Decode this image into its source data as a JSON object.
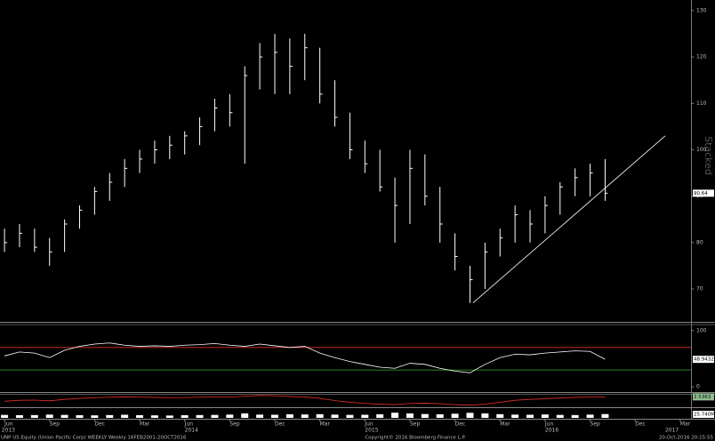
{
  "chart_data": [
    {
      "type": "ohlc",
      "side_label": "Stacked",
      "xlim": [
        -0.3,
        45.6
      ],
      "xticks": [
        {
          "value": 0,
          "label": "Jun"
        },
        {
          "value": 3,
          "label": "Sep"
        },
        {
          "value": 6,
          "label": "Dec"
        },
        {
          "value": 9,
          "label": "Mar"
        },
        {
          "value": 12,
          "label": "Jun"
        },
        {
          "value": 15,
          "label": "Sep"
        },
        {
          "value": 18,
          "label": "Dec"
        },
        {
          "value": 21,
          "label": "Mar"
        },
        {
          "value": 24,
          "label": "Jun"
        },
        {
          "value": 27,
          "label": "Sep"
        },
        {
          "value": 30,
          "label": "Dec"
        },
        {
          "value": 33,
          "label": "Mar"
        },
        {
          "value": 36,
          "label": "Jun"
        },
        {
          "value": 39,
          "label": "Sep"
        },
        {
          "value": 42,
          "label": "Dec"
        },
        {
          "value": 45,
          "label": "Mar"
        }
      ],
      "year_ticks": [
        {
          "value": -0.2,
          "label": "2013"
        },
        {
          "value": 12,
          "label": "2014"
        },
        {
          "value": 24,
          "label": "2015"
        },
        {
          "value": 36,
          "label": "2016"
        },
        {
          "value": 44,
          "label": "2017"
        }
      ],
      "ylim": [
        63.3,
        131.9
      ],
      "yticks": [
        70,
        80,
        90,
        100,
        110,
        120,
        130
      ],
      "series": [
        {
          "color": "#ffffff",
          "high": [
            83,
            84,
            83,
            81,
            85,
            88,
            92,
            95,
            98,
            100,
            102,
            103,
            104,
            107,
            111,
            112,
            118,
            123,
            125,
            124,
            125,
            122,
            115,
            108,
            102,
            100,
            94,
            100,
            99,
            92,
            82,
            75,
            80,
            83,
            88,
            87,
            90,
            93,
            96,
            97,
            98
          ],
          "low": [
            78,
            79,
            78,
            75,
            78,
            83,
            86,
            89,
            92,
            95,
            97,
            98,
            99,
            101,
            104,
            105,
            97,
            113,
            112,
            112,
            115,
            110,
            105,
            98,
            95,
            91,
            80,
            84,
            88,
            80,
            74,
            67,
            70,
            77,
            80,
            80,
            82,
            86,
            90,
            90,
            89
          ],
          "close": [
            80,
            82,
            79,
            78,
            84,
            87,
            91,
            93,
            96,
            98,
            100,
            101,
            103,
            105,
            109,
            108,
            116,
            120,
            121,
            118,
            122,
            112,
            107,
            100,
            97,
            92,
            88,
            96,
            90,
            84,
            77,
            72,
            78,
            81,
            86,
            84,
            88,
            92,
            94,
            95,
            90.64
          ]
        }
      ],
      "trendline": {
        "color": "#ffffff",
        "x": [
          31.2,
          44
        ],
        "y": [
          67,
          103
        ]
      }
    },
    {
      "type": "line",
      "ylim": [
        -7.7,
        109.2
      ],
      "yticks": [
        0,
        100
      ],
      "hlines": [
        {
          "value": 70,
          "color": "#e0312b"
        },
        {
          "value": 30,
          "color": "#2fae2f"
        }
      ],
      "series": [
        {
          "color": "#ffffff",
          "values": [
            55,
            62,
            60,
            52,
            65,
            72,
            76,
            78,
            74,
            72,
            73,
            72,
            74,
            75,
            77,
            74,
            72,
            76,
            73,
            70,
            72,
            60,
            52,
            45,
            40,
            35,
            33,
            42,
            40,
            33,
            28,
            25,
            40,
            52,
            58,
            57,
            60,
            62,
            64,
            63,
            48.9432
          ]
        }
      ]
    },
    {
      "type": "line",
      "ylim": [
        -4,
        4
      ],
      "series": [
        {
          "color": "#e0312b",
          "values": [
            -0.5,
            0.2,
            0.3,
            -0.2,
            0.8,
            1.5,
            2,
            2.3,
            2.5,
            2.4,
            2.2,
            2,
            2.1,
            2.3,
            2.6,
            2.4,
            3,
            3.5,
            3.3,
            2.8,
            2.5,
            1.5,
            0,
            -1.2,
            -2,
            -2.5,
            -2.8,
            -2,
            -1.8,
            -2.2,
            -2.8,
            -3.2,
            -2.5,
            -1.2,
            0.2,
            0.8,
            1.2,
            1.8,
            2.2,
            2.4,
            2.5363
          ]
        }
      ]
    },
    {
      "type": "bar",
      "ylim": [
        0,
        60
      ],
      "last_label": "25.740M",
      "series": [
        {
          "color": "#ffffff",
          "values": [
            20,
            18,
            19,
            22,
            20,
            18,
            17,
            19,
            21,
            18,
            17,
            16,
            18,
            19,
            20,
            22,
            30,
            22,
            21,
            24,
            23,
            25,
            22,
            20,
            21,
            24,
            35,
            30,
            26,
            24,
            28,
            34,
            30,
            25,
            22,
            21,
            23,
            20,
            19,
            22,
            25.74
          ]
        }
      ]
    }
  ],
  "footer": {
    "left": "UNP US Equity (Union Pacific Corp) WEEKLY  Weekly 16FEB2001-20OCT2016",
    "center": "Copyright© 2016 Bloomberg Finance L.P.",
    "right": "20-Oct-2016 20:15:55"
  }
}
